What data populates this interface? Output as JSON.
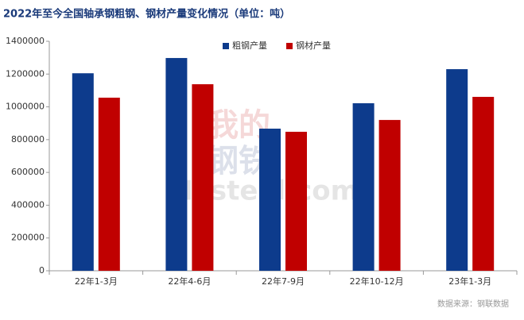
{
  "chart_data": {
    "type": "bar",
    "title": "2022年至今全国轴承钢粗钢、钢材产量变化情况（单位：吨）",
    "source": "数据来源：钢联数据",
    "watermark": [
      "我的",
      "钢铁",
      "Mysteel.com"
    ],
    "categories": [
      "22年1-3月",
      "22年4-6月",
      "22年7-9月",
      "22年10-12月",
      "23年1-3月"
    ],
    "series": [
      {
        "name": "粗钢产量",
        "color": "#0d3b8c",
        "values": [
          1205000,
          1298000,
          867000,
          1022000,
          1230000
        ]
      },
      {
        "name": "钢材产量",
        "color": "#c00000",
        "values": [
          1056000,
          1138000,
          848000,
          920000,
          1061000
        ]
      }
    ],
    "ylim": [
      0,
      1400000
    ],
    "yticks": [
      0,
      200000,
      400000,
      600000,
      800000,
      1000000,
      1200000,
      1400000
    ],
    "grid": false
  }
}
